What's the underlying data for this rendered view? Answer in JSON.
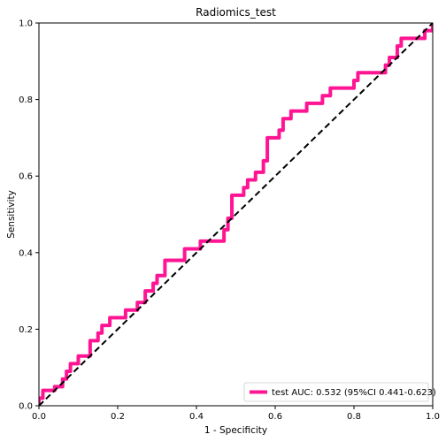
{
  "chart_data": {
    "type": "line",
    "title": "Radiomics_test",
    "xlabel": "1 - Specificity",
    "ylabel": "Sensitivity",
    "xlim": [
      0,
      1
    ],
    "ylim": [
      0,
      1
    ],
    "xticks": [
      "0.0",
      "0.2",
      "0.4",
      "0.6",
      "0.8",
      "1.0"
    ],
    "yticks": [
      "0.0",
      "0.2",
      "0.4",
      "0.6",
      "0.8",
      "1.0"
    ],
    "grid": false,
    "legend_position": "lower-right",
    "series": [
      {
        "name": "test AUC: 0.532 (95%CI 0.441-0.623)",
        "color": "#ff1493",
        "style": "step",
        "points": [
          [
            0.0,
            0.0
          ],
          [
            0.0,
            0.02
          ],
          [
            0.01,
            0.02
          ],
          [
            0.01,
            0.04
          ],
          [
            0.03,
            0.04
          ],
          [
            0.04,
            0.04
          ],
          [
            0.04,
            0.05
          ],
          [
            0.06,
            0.05
          ],
          [
            0.06,
            0.07
          ],
          [
            0.07,
            0.07
          ],
          [
            0.07,
            0.09
          ],
          [
            0.08,
            0.09
          ],
          [
            0.08,
            0.11
          ],
          [
            0.1,
            0.11
          ],
          [
            0.1,
            0.13
          ],
          [
            0.13,
            0.13
          ],
          [
            0.13,
            0.17
          ],
          [
            0.15,
            0.17
          ],
          [
            0.15,
            0.19
          ],
          [
            0.16,
            0.19
          ],
          [
            0.16,
            0.21
          ],
          [
            0.18,
            0.21
          ],
          [
            0.18,
            0.23
          ],
          [
            0.22,
            0.23
          ],
          [
            0.22,
            0.25
          ],
          [
            0.25,
            0.25
          ],
          [
            0.25,
            0.27
          ],
          [
            0.27,
            0.27
          ],
          [
            0.27,
            0.3
          ],
          [
            0.29,
            0.3
          ],
          [
            0.29,
            0.32
          ],
          [
            0.3,
            0.32
          ],
          [
            0.3,
            0.34
          ],
          [
            0.32,
            0.34
          ],
          [
            0.32,
            0.38
          ],
          [
            0.37,
            0.38
          ],
          [
            0.37,
            0.41
          ],
          [
            0.41,
            0.41
          ],
          [
            0.41,
            0.43
          ],
          [
            0.47,
            0.43
          ],
          [
            0.47,
            0.46
          ],
          [
            0.48,
            0.46
          ],
          [
            0.48,
            0.49
          ],
          [
            0.49,
            0.49
          ],
          [
            0.49,
            0.55
          ],
          [
            0.52,
            0.55
          ],
          [
            0.52,
            0.57
          ],
          [
            0.53,
            0.57
          ],
          [
            0.53,
            0.59
          ],
          [
            0.55,
            0.59
          ],
          [
            0.55,
            0.61
          ],
          [
            0.57,
            0.61
          ],
          [
            0.57,
            0.64
          ],
          [
            0.58,
            0.64
          ],
          [
            0.58,
            0.7
          ],
          [
            0.61,
            0.7
          ],
          [
            0.61,
            0.72
          ],
          [
            0.62,
            0.72
          ],
          [
            0.62,
            0.75
          ],
          [
            0.64,
            0.75
          ],
          [
            0.64,
            0.77
          ],
          [
            0.68,
            0.77
          ],
          [
            0.68,
            0.79
          ],
          [
            0.72,
            0.79
          ],
          [
            0.72,
            0.81
          ],
          [
            0.74,
            0.81
          ],
          [
            0.74,
            0.83
          ],
          [
            0.8,
            0.83
          ],
          [
            0.8,
            0.85
          ],
          [
            0.81,
            0.85
          ],
          [
            0.81,
            0.87
          ],
          [
            0.88,
            0.87
          ],
          [
            0.88,
            0.89
          ],
          [
            0.89,
            0.89
          ],
          [
            0.89,
            0.91
          ],
          [
            0.91,
            0.91
          ],
          [
            0.91,
            0.94
          ],
          [
            0.92,
            0.94
          ],
          [
            0.92,
            0.96
          ],
          [
            0.98,
            0.96
          ],
          [
            0.98,
            0.98
          ],
          [
            1.0,
            0.98
          ],
          [
            1.0,
            1.0
          ]
        ]
      },
      {
        "name": "",
        "color": "#000000",
        "style": "dashed",
        "points": [
          [
            0,
            0
          ],
          [
            1,
            1
          ]
        ]
      }
    ]
  }
}
